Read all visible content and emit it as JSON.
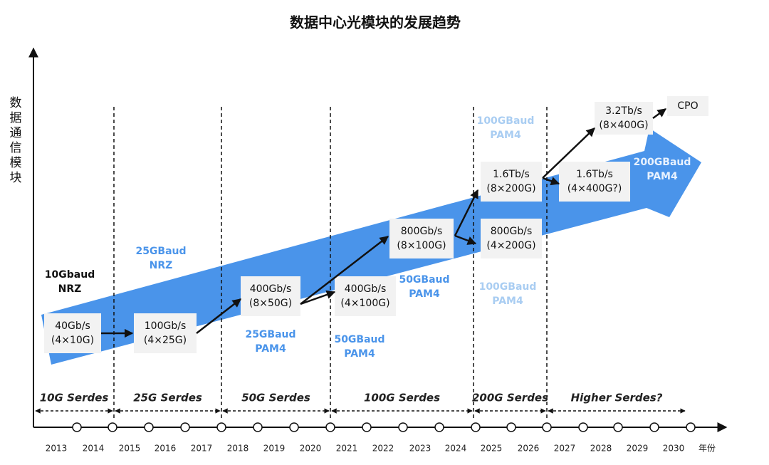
{
  "title": "数据中心光模块的发展趋势",
  "y_axis_label": "数据通信模块",
  "x_axis_label": "年份",
  "years": [
    "2013",
    "2014",
    "2015",
    "2016",
    "2017",
    "2018",
    "2019",
    "2020",
    "2021",
    "2022",
    "2023",
    "2024",
    "2025",
    "2026",
    "2027",
    "2028",
    "2029",
    "2030"
  ],
  "serdes": [
    "10G Serdes",
    "25G Serdes",
    "50G Serdes",
    "100G Serdes",
    "200G Serdes",
    "Higher Serdes?"
  ],
  "modules": [
    {
      "lines": [
        "40Gb/s",
        "(4×10G)"
      ]
    },
    {
      "lines": [
        "100Gb/s",
        "(4×25G)"
      ]
    },
    {
      "lines": [
        "400Gb/s",
        "(8×50G)"
      ]
    },
    {
      "lines": [
        "400Gb/s",
        "(4×100G)"
      ]
    },
    {
      "lines": [
        "800Gb/s",
        "(8×100G)"
      ]
    },
    {
      "lines": [
        "1.6Tb/s",
        "(8×200G)"
      ]
    },
    {
      "lines": [
        "800Gb/s",
        "(4×200G)"
      ]
    },
    {
      "lines": [
        "1.6Tb/s",
        "(4×400G?)"
      ]
    },
    {
      "lines": [
        "3.2Tb/s",
        "(8×400G)"
      ]
    },
    {
      "lines": [
        "CPO"
      ]
    }
  ],
  "baud_labels": [
    {
      "lines": [
        "10Gbaud",
        "NRZ"
      ]
    },
    {
      "lines": [
        "25GBaud",
        "NRZ"
      ]
    },
    {
      "lines": [
        "25GBaud",
        "PAM4"
      ]
    },
    {
      "lines": [
        "50GBaud",
        "PAM4"
      ]
    },
    {
      "lines": [
        "50GBaud",
        "PAM4"
      ]
    },
    {
      "lines": [
        "100GBaud",
        "PAM4"
      ]
    },
    {
      "lines": [
        "100GBaud",
        "PAM4"
      ]
    },
    {
      "lines": [
        "200GBaud",
        "PAM4"
      ]
    }
  ]
}
